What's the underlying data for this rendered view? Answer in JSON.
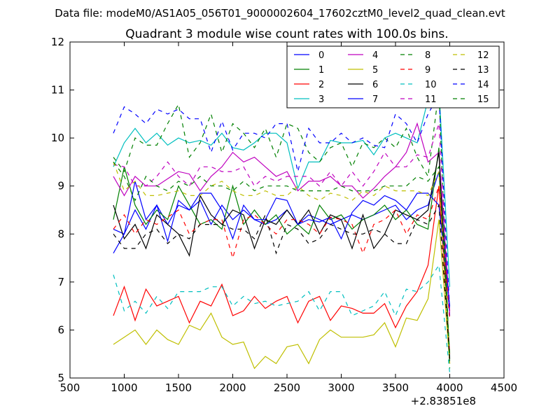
{
  "suptitle": "Data file: modeM0/AS1A05_056T01_9000002604_17602cztM0_level2_quad_clean.evt",
  "chart_data": {
    "type": "line",
    "title": "Quadrant 3 module wise count rates with 100.0s bins.",
    "xlabel": "",
    "ylabel": "",
    "x_offset_label": "+2.83851e8",
    "xlim": [
      500,
      4500
    ],
    "ylim": [
      5,
      12
    ],
    "xticks": [
      500,
      1000,
      1500,
      2000,
      2500,
      3000,
      3500,
      4000,
      4500
    ],
    "yticks": [
      5,
      6,
      7,
      8,
      9,
      10,
      11,
      12
    ],
    "grid": false,
    "legend": {
      "placement": "top-right",
      "columns": 4
    },
    "x": [
      900,
      1000,
      1100,
      1200,
      1300,
      1400,
      1500,
      1600,
      1700,
      1800,
      1900,
      2000,
      2100,
      2200,
      2300,
      2400,
      2500,
      2600,
      2700,
      2800,
      2900,
      3000,
      3100,
      3200,
      3300,
      3400,
      3500,
      3600,
      3700,
      3800,
      3900,
      4000
    ],
    "series": [
      {
        "name": "0",
        "color": "#0000ff",
        "dash": false,
        "values": [
          8.1,
          8.0,
          8.5,
          8.1,
          8.6,
          8.2,
          8.6,
          8.5,
          8.7,
          8.2,
          8.6,
          8.3,
          8.5,
          8.3,
          8.2,
          8.3,
          8.5,
          8.2,
          8.4,
          8.3,
          8.2,
          8.3,
          8.4,
          8.3,
          8.4,
          8.5,
          8.6,
          8.3,
          8.5,
          8.6,
          9.3,
          6.3
        ]
      },
      {
        "name": "1",
        "color": "#008000",
        "dash": false,
        "values": [
          8.3,
          9.4,
          8.6,
          8.2,
          8.5,
          8.3,
          9.0,
          8.6,
          8.2,
          8.3,
          8.1,
          9.0,
          8.2,
          8.5,
          8.2,
          8.4,
          8.0,
          8.2,
          8.0,
          8.6,
          8.3,
          8.4,
          8.1,
          8.3,
          8.4,
          8.6,
          8.3,
          8.5,
          8.2,
          8.1,
          9.8,
          5.4
        ]
      },
      {
        "name": "2",
        "color": "#ff0000",
        "dash": false,
        "values": [
          6.3,
          6.9,
          6.2,
          6.85,
          6.5,
          6.6,
          6.7,
          6.15,
          6.6,
          6.5,
          6.95,
          6.3,
          6.4,
          6.7,
          6.45,
          6.6,
          6.7,
          6.15,
          6.6,
          6.7,
          6.2,
          6.5,
          6.45,
          6.35,
          6.35,
          6.55,
          6.05,
          6.5,
          6.8,
          7.35,
          9.0,
          5.5
        ]
      },
      {
        "name": "3",
        "color": "#00bfbf",
        "dash": false,
        "values": [
          9.4,
          9.9,
          10.2,
          9.9,
          10.1,
          9.85,
          10.0,
          9.9,
          9.95,
          9.85,
          10.1,
          9.8,
          9.75,
          9.9,
          10.1,
          10.1,
          9.9,
          8.95,
          9.5,
          9.5,
          9.95,
          9.9,
          9.9,
          9.95,
          9.65,
          10.0,
          10.1,
          10.0,
          9.9,
          10.8,
          11.05,
          6.9
        ]
      },
      {
        "name": "4",
        "color": "#bf00bf",
        "dash": false,
        "values": [
          9.2,
          8.8,
          9.2,
          9.0,
          9.0,
          9.15,
          9.3,
          9.25,
          8.9,
          9.2,
          9.4,
          9.7,
          9.5,
          9.6,
          9.4,
          9.2,
          9.3,
          8.9,
          9.1,
          9.1,
          9.2,
          9.0,
          9.0,
          8.75,
          8.95,
          9.2,
          9.4,
          9.7,
          10.3,
          9.5,
          9.7,
          6.4
        ]
      },
      {
        "name": "5",
        "color": "#bfbf00",
        "dash": false,
        "values": [
          5.7,
          5.85,
          6.0,
          5.7,
          6.0,
          5.8,
          5.7,
          6.1,
          6.0,
          6.35,
          5.85,
          5.7,
          5.75,
          5.2,
          5.45,
          5.3,
          5.65,
          5.7,
          5.3,
          5.8,
          6.0,
          5.85,
          5.85,
          5.85,
          5.9,
          6.15,
          5.65,
          6.25,
          6.2,
          6.65,
          8.3,
          5.3
        ]
      },
      {
        "name": "6",
        "color": "#000000",
        "dash": false,
        "values": [
          8.6,
          7.9,
          8.2,
          7.7,
          8.4,
          8.2,
          8.0,
          7.55,
          8.8,
          8.4,
          8.2,
          8.5,
          8.4,
          7.7,
          8.3,
          8.2,
          8.5,
          8.2,
          8.5,
          8.0,
          8.4,
          8.3,
          7.7,
          8.4,
          7.7,
          8.0,
          8.5,
          8.4,
          8.3,
          8.5,
          9.7,
          5.3
        ]
      },
      {
        "name": "7",
        "color": "#0000ff",
        "dash": false,
        "values": [
          7.6,
          8.0,
          9.1,
          8.3,
          8.6,
          7.85,
          8.7,
          8.5,
          8.85,
          8.85,
          8.5,
          7.9,
          8.6,
          8.3,
          8.3,
          8.75,
          8.7,
          8.2,
          8.3,
          8.25,
          8.35,
          7.9,
          8.45,
          8.7,
          8.6,
          8.8,
          8.7,
          8.5,
          8.85,
          8.85,
          8.6,
          6.5
        ]
      },
      {
        "name": "8",
        "color": "#008000",
        "dash": true,
        "values": [
          9.6,
          9.3,
          10.0,
          9.85,
          9.85,
          10.3,
          10.7,
          9.6,
          9.9,
          10.5,
          9.7,
          10.3,
          10.1,
          9.8,
          10.2,
          9.6,
          10.3,
          10.2,
          9.7,
          9.5,
          9.8,
          9.9,
          9.4,
          9.9,
          9.8,
          10.0,
          9.8,
          10.2,
          9.6,
          9.2,
          11.0,
          5.2
        ]
      },
      {
        "name": "9",
        "color": "#ff0000",
        "dash": true,
        "values": [
          8.1,
          8.4,
          8.0,
          8.3,
          8.2,
          8.35,
          8.5,
          8.0,
          8.2,
          8.3,
          8.3,
          7.5,
          8.3,
          8.4,
          8.2,
          8.0,
          8.3,
          8.3,
          8.2,
          8.0,
          8.35,
          8.3,
          8.2,
          7.6,
          8.2,
          8.3,
          8.5,
          8.0,
          8.4,
          8.3,
          9.0,
          6.2
        ]
      },
      {
        "name": "10",
        "color": "#00bfbf",
        "dash": true,
        "values": [
          7.15,
          6.4,
          6.6,
          6.35,
          6.7,
          6.45,
          6.8,
          6.8,
          6.8,
          6.9,
          6.9,
          6.5,
          6.7,
          6.55,
          6.6,
          6.5,
          6.55,
          6.6,
          6.8,
          6.4,
          6.8,
          6.8,
          6.3,
          6.4,
          6.5,
          6.8,
          6.3,
          6.85,
          6.8,
          7.0,
          7.35,
          5.1
        ]
      },
      {
        "name": "11",
        "color": "#bf00bf",
        "dash": true,
        "values": [
          9.45,
          9.4,
          9.0,
          9.0,
          9.2,
          9.5,
          9.2,
          9.0,
          9.4,
          9.4,
          9.3,
          9.3,
          9.4,
          9.0,
          9.2,
          9.1,
          9.2,
          9.2,
          9.2,
          9.0,
          9.3,
          9.0,
          9.3,
          9.0,
          9.3,
          9.7,
          9.4,
          9.4,
          9.65,
          9.6,
          10.3,
          6.3
        ]
      },
      {
        "name": "12",
        "color": "#bfbf00",
        "dash": true,
        "values": [
          9.5,
          8.9,
          9.1,
          8.8,
          8.8,
          8.85,
          8.9,
          8.8,
          8.8,
          9.0,
          9.1,
          8.9,
          8.8,
          8.8,
          8.9,
          8.8,
          8.8,
          9.0,
          8.8,
          8.7,
          8.85,
          8.8,
          8.7,
          8.9,
          8.8,
          9.0,
          8.9,
          8.9,
          8.9,
          8.8,
          9.3,
          5.3
        ]
      },
      {
        "name": "13",
        "color": "#000000",
        "dash": true,
        "values": [
          8.0,
          7.7,
          7.7,
          8.0,
          8.1,
          7.8,
          8.0,
          7.9,
          8.2,
          8.2,
          8.2,
          8.1,
          8.1,
          7.9,
          8.4,
          7.6,
          8.2,
          8.1,
          7.8,
          7.9,
          8.2,
          8.1,
          8.0,
          8.0,
          8.1,
          8.0,
          7.8,
          7.8,
          8.3,
          8.2,
          8.6,
          5.4
        ]
      },
      {
        "name": "14",
        "color": "#0000ff",
        "dash": true,
        "values": [
          10.1,
          10.65,
          10.5,
          10.3,
          10.6,
          10.5,
          10.6,
          10.4,
          10.4,
          9.7,
          10.35,
          9.75,
          10.1,
          10.1,
          10.0,
          10.3,
          10.3,
          9.3,
          10.2,
          9.9,
          9.9,
          10.1,
          9.9,
          10.0,
          9.85,
          9.8,
          10.5,
          10.3,
          9.9,
          10.5,
          10.9,
          6.4
        ]
      },
      {
        "name": "15",
        "color": "#008000",
        "dash": true,
        "values": [
          9.5,
          9.2,
          8.7,
          9.2,
          9.0,
          8.9,
          9.1,
          9.0,
          9.2,
          9.0,
          9.0,
          8.9,
          9.1,
          8.9,
          9.0,
          9.0,
          9.0,
          8.9,
          8.9,
          8.9,
          8.9,
          9.0,
          8.9,
          8.9,
          8.9,
          9.0,
          9.0,
          9.0,
          9.2,
          9.1,
          9.4,
          5.5
        ]
      }
    ]
  }
}
